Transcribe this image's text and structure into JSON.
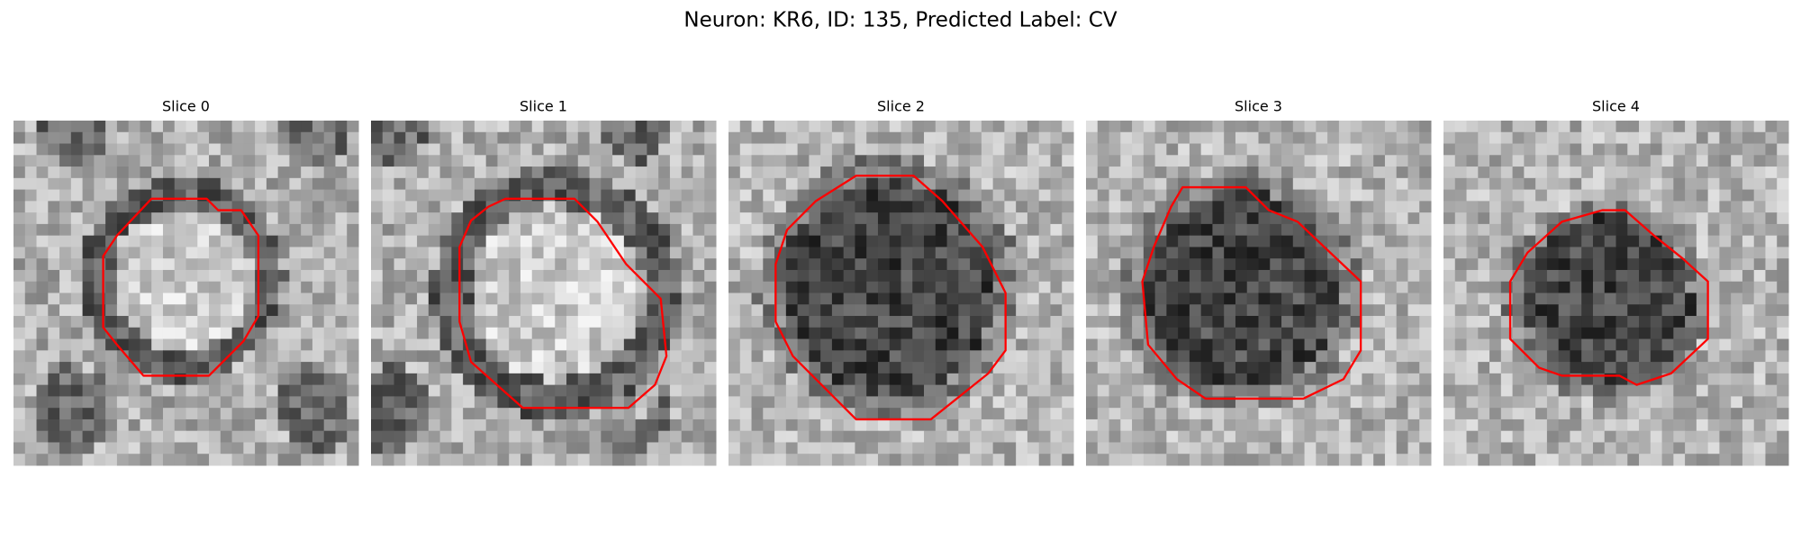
{
  "title": "Neuron: KR6, ID: 135, Predicted Label: CV",
  "panels": [
    {
      "title": "Slice 0"
    },
    {
      "title": "Slice 1"
    },
    {
      "title": "Slice 2"
    },
    {
      "title": "Slice 3"
    },
    {
      "title": "Slice 4"
    }
  ]
}
